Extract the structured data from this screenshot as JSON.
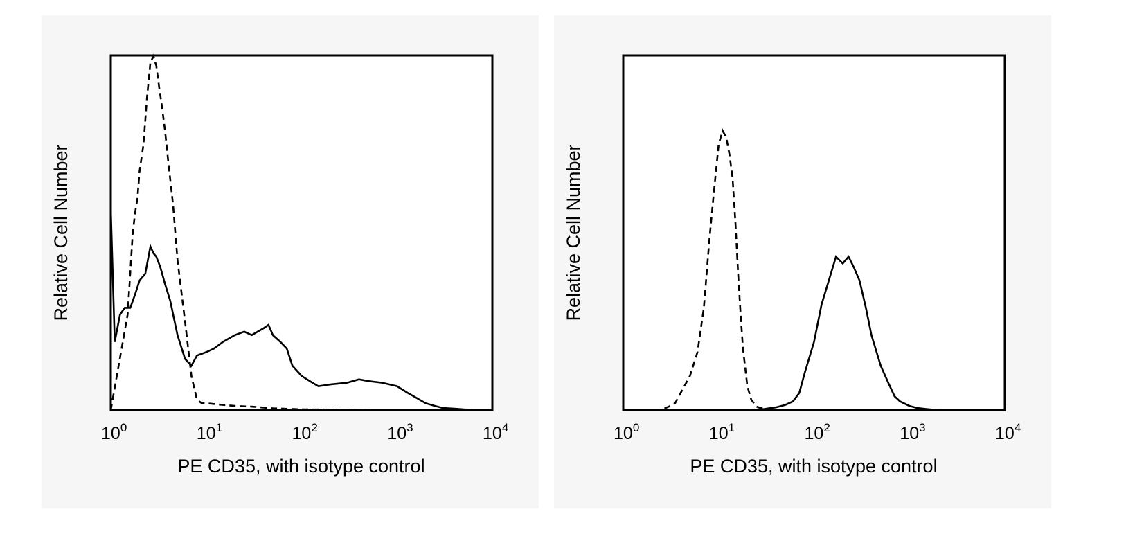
{
  "chart_data": [
    {
      "type": "line",
      "title": "",
      "xlabel": "PE CD35, with isotype control",
      "ylabel": "Relative Cell Number",
      "xscale": "log",
      "xlim": [
        1,
        10000
      ],
      "ylim": [
        0,
        100
      ],
      "xticks": [
        {
          "base": "10",
          "exp": "0"
        },
        {
          "base": "10",
          "exp": "1"
        },
        {
          "base": "10",
          "exp": "2"
        },
        {
          "base": "10",
          "exp": "3"
        },
        {
          "base": "10",
          "exp": "4"
        }
      ],
      "series": [
        {
          "name": "PE CD35",
          "style": "solid",
          "x": [
            1,
            1.1,
            1.25,
            1.4,
            1.6,
            1.8,
            2.0,
            2.3,
            2.6,
            2.8,
            3.0,
            3.3,
            3.7,
            4.2,
            5.0,
            6.0,
            7.0,
            8.0,
            10,
            12,
            15,
            20,
            25,
            30,
            40,
            45,
            50,
            60,
            70,
            80,
            100,
            130,
            150,
            200,
            300,
            400,
            500,
            700,
            1000,
            1300,
            1500,
            2000,
            2500,
            3000,
            4000,
            5000,
            7000,
            10000
          ],
          "y": [
            59,
            20,
            28,
            30,
            30,
            34,
            38,
            40,
            48,
            46,
            45,
            42,
            37,
            32,
            22,
            15,
            13,
            16,
            17,
            18,
            20,
            22,
            23,
            22,
            24,
            25,
            22,
            20,
            18,
            13,
            10,
            8,
            7,
            7.5,
            8,
            9,
            8.5,
            8,
            7,
            5,
            4,
            2,
            1.2,
            0.6,
            0.4,
            0.2,
            0,
            0
          ]
        },
        {
          "name": "isotype control",
          "style": "dashed",
          "x": [
            1,
            1.5,
            1.7,
            1.8,
            1.9,
            2.0,
            2.2,
            2.4,
            2.6,
            2.8,
            3.0,
            3.2,
            3.4,
            3.7,
            4.0,
            4.5,
            5.0,
            6.0,
            7.0,
            8.0,
            9.0,
            10,
            15,
            20,
            30,
            50,
            100,
            1000,
            10000
          ],
          "y": [
            0,
            28,
            52,
            58,
            62,
            70,
            78,
            92,
            102,
            104,
            101,
            95,
            90,
            82,
            73,
            60,
            44,
            26,
            10,
            3,
            2,
            2,
            1.5,
            1.2,
            1,
            0.5,
            0.2,
            0,
            0
          ]
        }
      ]
    },
    {
      "type": "line",
      "title": "",
      "xlabel": "PE CD35, with isotype control",
      "ylabel": "Relative Cell Number",
      "xscale": "log",
      "xlim": [
        1,
        10000
      ],
      "ylim": [
        0,
        100
      ],
      "xticks": [
        {
          "base": "10",
          "exp": "0"
        },
        {
          "base": "10",
          "exp": "1"
        },
        {
          "base": "10",
          "exp": "2"
        },
        {
          "base": "10",
          "exp": "3"
        },
        {
          "base": "10",
          "exp": "4"
        }
      ],
      "series": [
        {
          "name": "PE CD35",
          "style": "solid",
          "x": [
            1,
            20,
            30,
            40,
            50,
            60,
            70,
            80,
            100,
            120,
            150,
            170,
            200,
            230,
            260,
            300,
            350,
            400,
            500,
            600,
            700,
            800,
            1000,
            1200,
            1500,
            1800,
            2500,
            10000
          ],
          "y": [
            0,
            0,
            0.3,
            0.8,
            1.5,
            2.5,
            5,
            11,
            20,
            31,
            40,
            45,
            43,
            45,
            42,
            38,
            30,
            22,
            13,
            8,
            4,
            2.5,
            1.2,
            0.6,
            0.3,
            0.1,
            0,
            0
          ]
        },
        {
          "name": "isotype control",
          "style": "dashed",
          "x": [
            1,
            2.5,
            3,
            3.5,
            4,
            5,
            6,
            7,
            8,
            9,
            10,
            11,
            12,
            13,
            14,
            15,
            16,
            17,
            18,
            20,
            22,
            25,
            30,
            50,
            10000
          ],
          "y": [
            0,
            0,
            1,
            2,
            5,
            10,
            17,
            30,
            50,
            65,
            78,
            82,
            80,
            75,
            68,
            55,
            40,
            28,
            18,
            7,
            3,
            1,
            0.3,
            0,
            0
          ]
        }
      ]
    }
  ]
}
